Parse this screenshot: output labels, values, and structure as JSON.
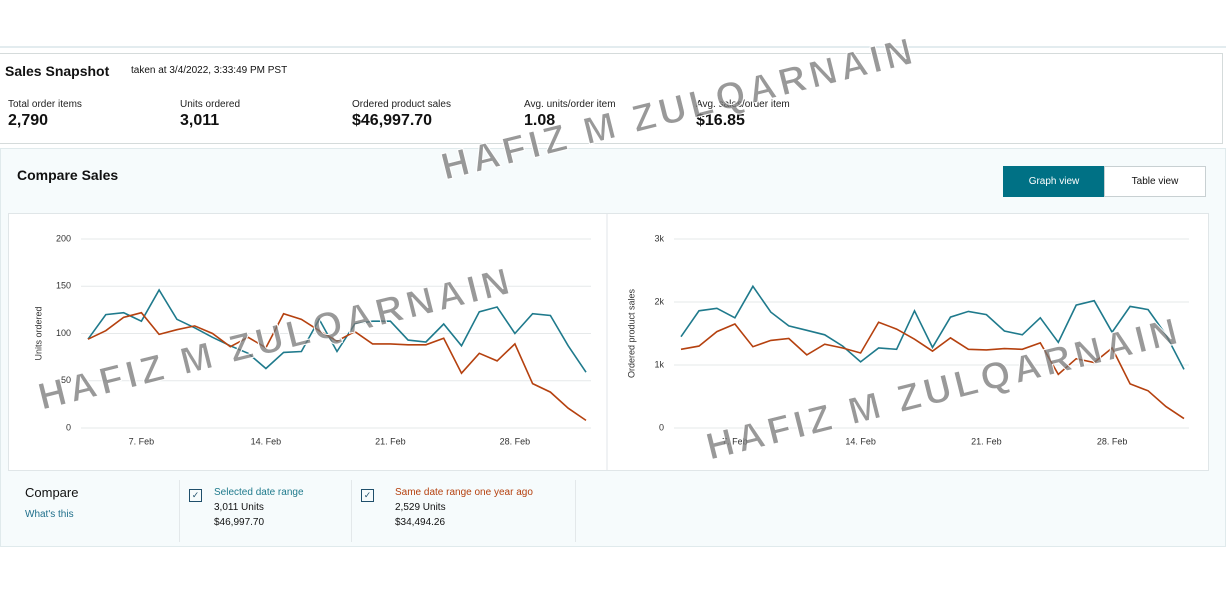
{
  "snapshot": {
    "title": "Sales Snapshot",
    "subtitle": "taken at 3/4/2022, 3:33:49 PM PST",
    "metrics": [
      {
        "label": "Total order items",
        "value": "2,790"
      },
      {
        "label": "Units ordered",
        "value": "3,011"
      },
      {
        "label": "Ordered product sales",
        "value": "$46,997.70"
      },
      {
        "label": "Avg. units/order item",
        "value": "1.08"
      },
      {
        "label": "Avg. sales/order item",
        "value": "$16.85"
      }
    ]
  },
  "compare_sales": {
    "title": "Compare Sales",
    "buttons": [
      "Graph view",
      "Table view"
    ]
  },
  "compare": {
    "title": "Compare",
    "link": "What's this",
    "items": [
      {
        "units": "3,011 Units",
        "sales": "$46,997.70"
      },
      {
        "units": "2,529 Units",
        "sales": "$34,494.26"
      }
    ]
  },
  "watermark": "HAFIZ M ZULQARNAIN",
  "chart_data": [
    {
      "type": "line",
      "y_label": "Units ordered",
      "categories": [
        null,
        null,
        null,
        "7. Feb",
        null,
        null,
        null,
        null,
        null,
        null,
        "14. Feb",
        null,
        null,
        null,
        null,
        null,
        null,
        "21. Feb",
        null,
        null,
        null,
        null,
        null,
        null,
        "28. Feb",
        null,
        null,
        null,
        null
      ],
      "ylim": [
        0,
        200
      ],
      "yticks": [
        0,
        50,
        100,
        150,
        200
      ],
      "grid": true,
      "series": [
        {
          "name": "Selected date range",
          "color": "#1f7a8c",
          "values": [
            94,
            120,
            122,
            113,
            146,
            115,
            106,
            96,
            87,
            79,
            63,
            80,
            81,
            115,
            81,
            110,
            113,
            113,
            93,
            91,
            110,
            87,
            123,
            128,
            100,
            121,
            119,
            87,
            59
          ]
        },
        {
          "name": "Same date range one year ago",
          "color": "#b5410f",
          "values": [
            94,
            103,
            117,
            122,
            99,
            104,
            108,
            100,
            86,
            96,
            85,
            121,
            115,
            103,
            92,
            102,
            89,
            89,
            88,
            88,
            95,
            58,
            79,
            71,
            89,
            47,
            38,
            21,
            8
          ]
        }
      ]
    },
    {
      "type": "line",
      "y_label": "Ordered product sales",
      "categories": [
        null,
        null,
        null,
        "7. Feb",
        null,
        null,
        null,
        null,
        null,
        null,
        "14. Feb",
        null,
        null,
        null,
        null,
        null,
        null,
        "21. Feb",
        null,
        null,
        null,
        null,
        null,
        null,
        "28. Feb",
        null,
        null,
        null,
        null
      ],
      "ylim": [
        0,
        3000
      ],
      "yticks": [
        0,
        {
          "value": 1000,
          "label": "1k"
        },
        {
          "value": 2000,
          "label": "2k"
        },
        {
          "value": 3000,
          "label": "3k"
        }
      ],
      "grid": true,
      "series": [
        {
          "name": "Selected date range",
          "color": "#1f7a8c",
          "values": [
            1450,
            1860,
            1900,
            1750,
            2250,
            1840,
            1620,
            1550,
            1480,
            1300,
            1050,
            1270,
            1250,
            1860,
            1280,
            1760,
            1850,
            1800,
            1540,
            1480,
            1750,
            1360,
            1950,
            2020,
            1520,
            1930,
            1880,
            1480,
            930
          ]
        },
        {
          "name": "Same date range one year ago",
          "color": "#b5410f",
          "values": [
            1250,
            1300,
            1530,
            1650,
            1290,
            1390,
            1420,
            1160,
            1330,
            1270,
            1190,
            1680,
            1570,
            1410,
            1220,
            1430,
            1250,
            1240,
            1260,
            1250,
            1350,
            850,
            1100,
            1040,
            1270,
            700,
            590,
            340,
            150
          ]
        }
      ]
    }
  ]
}
